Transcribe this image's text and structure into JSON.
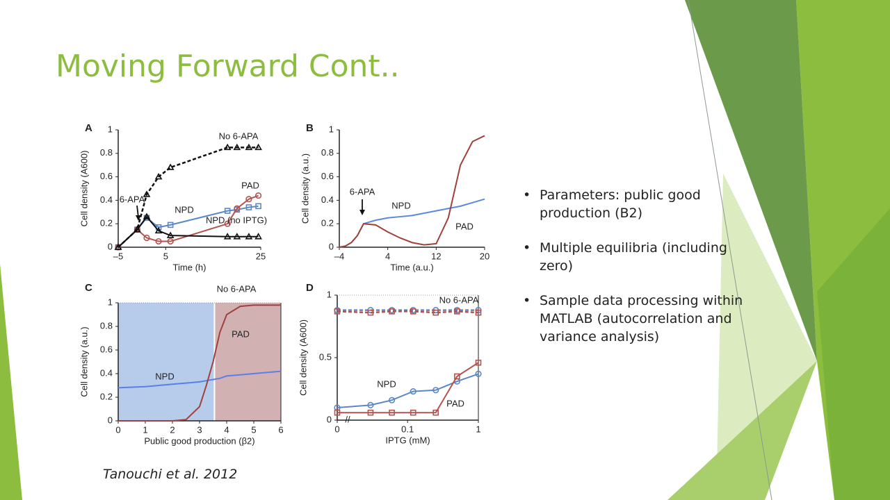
{
  "slide": {
    "title": "Moving Forward Cont..",
    "bullets": [
      "Parameters: public good production (B2)",
      "Multiple equilibria (including zero)",
      "Sample data processing within MATLAB (autocorrelation and variance analysis)"
    ],
    "citation": "Tanouchi et al. 2012"
  },
  "chart_data": [
    {
      "type": "line",
      "panel": "A",
      "xlabel": "Time (h)",
      "ylabel": "Cell density (A600)",
      "xlim": [
        -5,
        25
      ],
      "xticks": [
        {
          "value": -5,
          "label": "–5"
        },
        5,
        25
      ],
      "ylim": [
        0,
        1
      ],
      "yticks": [
        0,
        0.2,
        0.4,
        0.6,
        0.8,
        1
      ],
      "x": [
        -5,
        -1,
        1,
        3.5,
        6,
        18,
        20,
        22.5,
        24.5
      ],
      "series": [
        {
          "name": "NPD",
          "color": "#5b87c8",
          "marker": "square",
          "values": [
            0,
            0.15,
            0.25,
            0.17,
            0.19,
            0.31,
            0.32,
            0.34,
            0.35
          ]
        },
        {
          "name": "PAD",
          "color": "#b5524e",
          "marker": "circle",
          "values": [
            0,
            0.15,
            0.08,
            0.05,
            0.05,
            0.2,
            0.33,
            0.41,
            0.44
          ]
        },
        {
          "name": "NPD (no IPTG)",
          "color": "#111111",
          "marker": "triangle",
          "values": [
            0,
            0.15,
            0.26,
            0.14,
            0.1,
            0.09,
            0.09,
            0.09,
            0.09
          ]
        },
        {
          "name": "No 6-APA",
          "color": "#111111",
          "marker": "triangle",
          "dashed": true,
          "values": [
            0,
            0.15,
            0.45,
            0.6,
            0.68,
            0.85,
            0.85,
            0.85,
            0.85
          ]
        }
      ],
      "annotations": [
        "6-APA"
      ]
    },
    {
      "type": "line",
      "panel": "B",
      "xlabel": "Time (a.u.)",
      "ylabel": "Cell density (a.u.)",
      "xlim": [
        -4,
        20
      ],
      "xticks": [
        {
          "value": -4,
          "label": "–4"
        },
        4,
        12,
        20
      ],
      "ylim": [
        0,
        1
      ],
      "yticks": [
        0,
        0.2,
        0.4,
        0.6,
        0.8,
        1
      ],
      "x": [
        -4,
        -3,
        -2,
        -1,
        0,
        2,
        4,
        6,
        8,
        10,
        12,
        14,
        16,
        18,
        20
      ],
      "series": [
        {
          "name": "NPD",
          "color": "#5b87e0",
          "values": [
            0,
            0.01,
            0.04,
            0.1,
            0.2,
            0.23,
            0.25,
            0.26,
            0.27,
            0.29,
            0.31,
            0.33,
            0.35,
            0.38,
            0.41
          ]
        },
        {
          "name": "PAD",
          "color": "#a0403c",
          "values": [
            0,
            0.01,
            0.04,
            0.1,
            0.2,
            0.19,
            0.13,
            0.08,
            0.04,
            0.02,
            0.03,
            0.25,
            0.7,
            0.9,
            0.95
          ]
        }
      ],
      "annotations": [
        "6-APA"
      ]
    },
    {
      "type": "line",
      "panel": "C",
      "xlabel": "Public good production (β2)",
      "ylabel": "Cell density (a.u.)",
      "xlim": [
        0,
        6
      ],
      "xticks": [
        0,
        1,
        2,
        3,
        4,
        5,
        6
      ],
      "ylim": [
        0,
        1
      ],
      "yticks": [
        0,
        0.2,
        0.4,
        0.6,
        0.8,
        1
      ],
      "x": [
        0,
        1,
        2,
        2.5,
        3,
        3.25,
        3.5,
        3.75,
        4,
        4.5,
        5,
        6
      ],
      "regions": [
        {
          "xlim": [
            0,
            3.55
          ],
          "color": "#a9c3e6"
        },
        {
          "xlim": [
            3.55,
            6
          ],
          "color": "#c9a3a3"
        }
      ],
      "series": [
        {
          "name": "NPD",
          "color": "#5b7fe6",
          "values": [
            0.28,
            0.29,
            0.31,
            0.32,
            0.33,
            0.34,
            0.35,
            0.36,
            0.38,
            0.39,
            0.4,
            0.42
          ]
        },
        {
          "name": "PAD",
          "color": "#a0403c",
          "values": [
            0,
            0,
            0,
            0.01,
            0.12,
            0.3,
            0.5,
            0.75,
            0.9,
            0.97,
            0.98,
            0.98
          ]
        }
      ],
      "annotations": [
        "No 6-APA"
      ]
    },
    {
      "type": "line",
      "panel": "D",
      "xlabel": "IPTG (mM)",
      "ylabel": "Cell density (A600)",
      "xscale": "log",
      "x_break": true,
      "xlim": [
        0.02,
        1
      ],
      "xticks": [
        0,
        0.1,
        1
      ],
      "ylim": [
        0,
        1
      ],
      "yticks": [
        0,
        0.5,
        1
      ],
      "x": [
        0,
        0.03,
        0.06,
        0.12,
        0.25,
        0.5,
        1
      ],
      "series": [
        {
          "name": "NPD",
          "color": "#5b87c8",
          "marker": "circle",
          "values": [
            0.1,
            0.12,
            0.16,
            0.23,
            0.24,
            0.31,
            0.37
          ]
        },
        {
          "name": "PAD",
          "color": "#b5524e",
          "marker": "square",
          "values": [
            0.06,
            0.06,
            0.06,
            0.06,
            0.06,
            0.35,
            0.46
          ]
        },
        {
          "name": "No 6-APA",
          "color": "#5b87c8",
          "marker": "circle",
          "dashed": true,
          "values": [
            0.88,
            0.88,
            0.88,
            0.88,
            0.88,
            0.88,
            0.88
          ]
        },
        {
          "color": "#b5524e",
          "marker": "square",
          "dashed": true,
          "values": [
            0.87,
            0.86,
            0.87,
            0.87,
            0.86,
            0.87,
            0.86
          ]
        }
      ],
      "annotations": []
    }
  ]
}
